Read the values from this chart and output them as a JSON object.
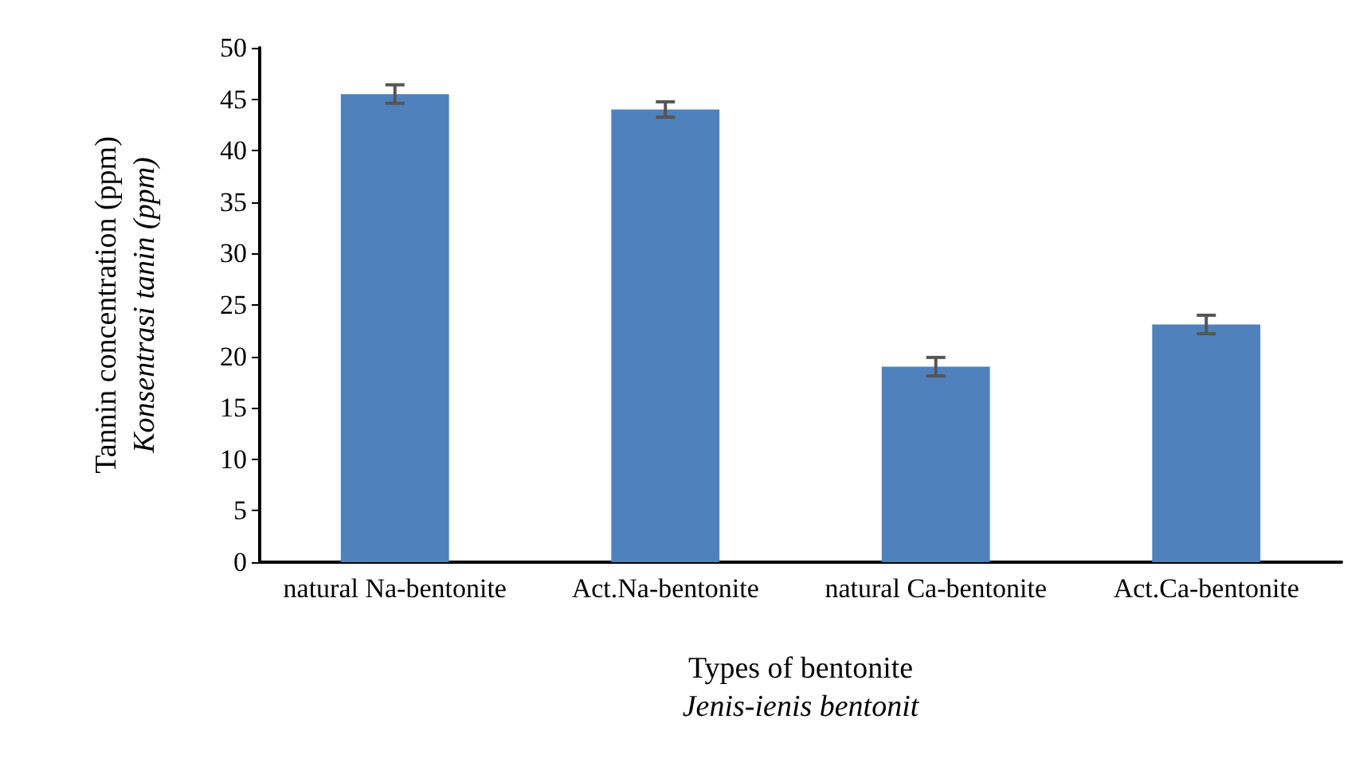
{
  "chart_data": {
    "type": "bar",
    "categories": [
      "natural Na-bentonite",
      "Act.Na-bentonite",
      "natural Ca-bentonite",
      "Act.Ca-bentonite"
    ],
    "values": [
      45.5,
      44.0,
      19.0,
      23.1
    ],
    "errors": [
      0.9,
      0.75,
      0.9,
      0.9
    ],
    "color": "#4f81bd",
    "xlabel": "Types of bentonite\nJenis-ienis bentonit",
    "ylabel": "Tannin concentration (ppm)\nKonsentrasi tanin (ppm)",
    "ylim": [
      0,
      50
    ],
    "yticks": [
      0,
      5,
      10,
      15,
      20,
      25,
      30,
      35,
      40,
      45,
      50
    ],
    "grid": false
  }
}
